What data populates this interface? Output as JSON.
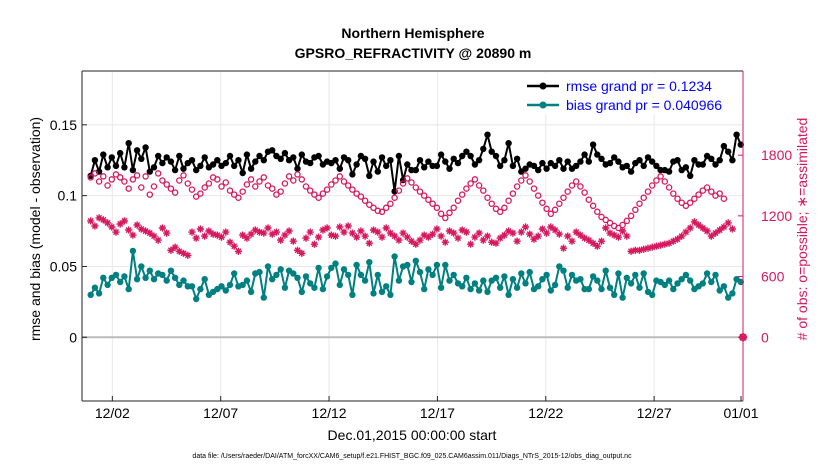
{
  "chart_data": {
    "type": "line",
    "title": "Northern Hemisphere",
    "subtitle": "GPSRO_REFRACTIVITY @ 20890 m",
    "xlabel": "Dec.01,2015 00:00:00 start",
    "ylabel": "rmse and bias (model - observation)",
    "ylabel_right": "# of obs: o=possible; ∗=assimilated",
    "footnote": "data file: /Users/raeder/DAI/ATM_forcXX/CAM6_setup/f.e21.FHIST_BGC.f09_025.CAM6assim.011/Diags_NTrS_2015-12/obs_diag_output.nc",
    "xlim": [
      0.6,
      31.1
    ],
    "ylim": [
      -0.045,
      0.188
    ],
    "ylim_right": [
      -630,
      2632
    ],
    "x_ticks": [
      2,
      7,
      12,
      17,
      22,
      27,
      32
    ],
    "x_tick_labels": [
      "12/02",
      "12/07",
      "12/12",
      "12/17",
      "12/22",
      "12/27",
      "01/01"
    ],
    "y_ticks": [
      0,
      0.05,
      0.1,
      0.15
    ],
    "y_tick_labels": [
      "0",
      "0.05",
      "0.1",
      "0.15"
    ],
    "y_right_ticks": [
      0,
      600,
      1200,
      1800
    ],
    "y_right_tick_labels": [
      "0",
      "600",
      "1200",
      "1800"
    ],
    "zero_line": 0,
    "grid": true,
    "legend_position": "top-right",
    "colors": {
      "rmse": "#000000",
      "bias": "#008080",
      "obs": "#d6185e",
      "legend_text": "#0000ff",
      "zero_line": "#bbbbbb",
      "grid": "#e8e8e8"
    },
    "series": [
      {
        "name": "rmse grand pr = 0.1234",
        "axis": "left",
        "values": [
          0.114,
          0.125,
          0.117,
          0.129,
          0.12,
          0.127,
          0.121,
          0.13,
          0.12,
          0.137,
          0.118,
          0.132,
          0.126,
          0.134,
          0.117,
          0.12,
          0.128,
          0.123,
          0.127,
          0.124,
          0.118,
          0.128,
          0.119,
          0.123,
          0.125,
          0.118,
          0.121,
          0.127,
          0.12,
          0.122,
          0.125,
          0.121,
          0.123,
          0.128,
          0.121,
          0.125,
          0.116,
          0.129,
          0.119,
          0.124,
          0.128,
          0.125,
          0.131,
          0.132,
          0.128,
          0.126,
          0.13,
          0.125,
          0.127,
          0.119,
          0.129,
          0.124,
          0.123,
          0.127,
          0.128,
          0.122,
          0.124,
          0.123,
          0.125,
          0.119,
          0.127,
          0.125,
          0.115,
          0.122,
          0.128,
          0.126,
          0.114,
          0.124,
          0.117,
          0.127,
          0.121,
          0.125,
          0.103,
          0.128,
          0.111,
          0.122,
          0.118,
          0.118,
          0.125,
          0.12,
          0.124,
          0.121,
          0.121,
          0.129,
          0.124,
          0.119,
          0.126,
          0.123,
          0.128,
          0.131,
          0.128,
          0.122,
          0.125,
          0.133,
          0.143,
          0.131,
          0.128,
          0.121,
          0.125,
          0.137,
          0.121,
          0.126,
          0.117,
          0.119,
          0.122,
          0.121,
          0.118,
          0.123,
          0.119,
          0.123,
          0.121,
          0.125,
          0.119,
          0.124,
          0.119,
          0.121,
          0.124,
          0.129,
          0.124,
          0.136,
          0.129,
          0.126,
          0.122,
          0.123,
          0.127,
          0.124,
          0.12,
          0.121,
          0.117,
          0.123,
          0.125,
          0.121,
          0.127,
          0.124,
          0.121,
          0.118,
          0.118,
          0.117,
          0.124,
          0.125,
          0.118,
          0.12,
          0.114,
          0.125,
          0.122,
          0.122,
          0.128,
          0.126,
          0.122,
          0.125,
          0.135,
          0.131,
          0.125,
          0.143,
          0.136
        ],
        "line": true,
        "marker": "filled-circle"
      },
      {
        "name": "bias grand pr = 0.040966",
        "axis": "left",
        "values": [
          0.03,
          0.035,
          0.031,
          0.042,
          0.037,
          0.042,
          0.044,
          0.039,
          0.043,
          0.034,
          0.061,
          0.041,
          0.05,
          0.042,
          0.047,
          0.041,
          0.045,
          0.044,
          0.04,
          0.047,
          0.042,
          0.037,
          0.04,
          0.036,
          0.036,
          0.027,
          0.034,
          0.041,
          0.03,
          0.032,
          0.034,
          0.036,
          0.033,
          0.037,
          0.045,
          0.036,
          0.037,
          0.04,
          0.032,
          0.045,
          0.046,
          0.028,
          0.05,
          0.041,
          0.044,
          0.048,
          0.035,
          0.047,
          0.045,
          0.042,
          0.032,
          0.043,
          0.038,
          0.035,
          0.049,
          0.034,
          0.043,
          0.049,
          0.052,
          0.037,
          0.048,
          0.044,
          0.03,
          0.051,
          0.044,
          0.04,
          0.053,
          0.031,
          0.044,
          0.032,
          0.036,
          0.03,
          0.057,
          0.04,
          0.05,
          0.051,
          0.039,
          0.054,
          0.046,
          0.034,
          0.048,
          0.044,
          0.051,
          0.035,
          0.051,
          0.04,
          0.044,
          0.038,
          0.036,
          0.042,
          0.034,
          0.038,
          0.033,
          0.04,
          0.032,
          0.04,
          0.042,
          0.035,
          0.043,
          0.03,
          0.041,
          0.035,
          0.045,
          0.038,
          0.046,
          0.034,
          0.036,
          0.041,
          0.044,
          0.033,
          0.037,
          0.05,
          0.047,
          0.035,
          0.044,
          0.04,
          0.041,
          0.034,
          0.034,
          0.043,
          0.04,
          0.034,
          0.047,
          0.035,
          0.03,
          0.045,
          0.028,
          0.042,
          0.038,
          0.044,
          0.035,
          0.045,
          0.032,
          0.03,
          0.04,
          0.039,
          0.037,
          0.04,
          0.034,
          0.038,
          0.041,
          0.044,
          0.04,
          0.034,
          0.036,
          0.038,
          0.045,
          0.039,
          0.044,
          0.033,
          0.036,
          0.028,
          0.031,
          0.041,
          0.039
        ],
        "line": true,
        "marker": "filled-circle"
      },
      {
        "name": "obs possible",
        "axis": "right",
        "values": [
          1580,
          1620,
          1540,
          1590,
          1500,
          1560,
          1610,
          1580,
          1540,
          1470,
          1560,
          1600,
          1480,
          1590,
          1410,
          1490,
          1620,
          1550,
          1510,
          1470,
          1430,
          1550,
          1600,
          1520,
          1460,
          1390,
          1420,
          1480,
          1520,
          1580,
          1560,
          1490,
          1530,
          1450,
          1410,
          1380,
          1440,
          1510,
          1560,
          1490,
          1540,
          1580,
          1500,
          1470,
          1410,
          1440,
          1520,
          1590,
          1550,
          1610,
          1560,
          1490,
          1450,
          1410,
          1380,
          1420,
          1460,
          1510,
          1550,
          1590,
          1540,
          1500,
          1460,
          1420,
          1390,
          1350,
          1310,
          1280,
          1250,
          1240,
          1280,
          1320,
          1380,
          1450,
          1520,
          1570,
          1530,
          1480,
          1440,
          1400,
          1360,
          1320,
          1280,
          1220,
          1180,
          1230,
          1280,
          1350,
          1410,
          1470,
          1520,
          1560,
          1500,
          1450,
          1380,
          1320,
          1270,
          1240,
          1280,
          1350,
          1420,
          1490,
          1550,
          1600,
          1540,
          1470,
          1400,
          1330,
          1270,
          1220,
          1260,
          1320,
          1380,
          1440,
          1500,
          1540,
          1490,
          1430,
          1360,
          1300,
          1240,
          1190,
          1160,
          1130,
          1100,
          1080,
          1110,
          1150,
          1200,
          1260,
          1320,
          1380,
          1440,
          1500,
          1550,
          1590,
          1540,
          1480,
          1420,
          1370,
          1330,
          1300,
          1330,
          1370,
          1410,
          1450,
          1480,
          1440,
          1400,
          1420,
          1370
        ],
        "line": false,
        "marker": "open-circle"
      },
      {
        "name": "obs assimilated",
        "axis": "right",
        "values": [
          1150,
          1100,
          1180,
          1160,
          1130,
          1090,
          1040,
          1120,
          1150,
          1060,
          1010,
          1110,
          1070,
          1050,
          1030,
          1000,
          960,
          1080,
          1030,
          860,
          890,
          850,
          830,
          810,
          1040,
          980,
          1070,
          1000,
          1050,
          1020,
          1010,
          990,
          1040,
          940,
          900,
          850,
          1010,
          980,
          1020,
          1060,
          1040,
          1030,
          1080,
          1020,
          1040,
          960,
          1010,
          1050,
          950,
          860,
          830,
          980,
          1040,
          920,
          990,
          1060,
          1080,
          1010,
          1000,
          1090,
          1040,
          1100,
          1030,
          990,
          1050,
          1000,
          930,
          1060,
          1040,
          990,
          1080,
          1030,
          1000,
          960,
          1030,
          990,
          950,
          920,
          960,
          1010,
          990,
          1020,
          1070,
          1000,
          940,
          1050,
          1030,
          980,
          1060,
          1040,
          920,
          990,
          1030,
          960,
          1000,
          940,
          930,
          980,
          1010,
          1050,
          1030,
          950,
          1040,
          1090,
          1020,
          970,
          1000,
          1070,
          1030,
          1090,
          1060,
          1020,
          880,
          1000,
          950,
          1040,
          1010,
          980,
          960,
          930,
          900,
          950,
          1080,
          1030,
          1010,
          990,
          1050,
          1000,
          850,
          860,
          860,
          870,
          880,
          890,
          900,
          910,
          920,
          930,
          950,
          970,
          1000,
          1040,
          1080,
          1140,
          1110,
          1080,
          1050,
          1000,
          1030,
          1060,
          1090,
          1130,
          1070
        ],
        "line": false,
        "marker": "asterisk"
      }
    ],
    "extra_points": [
      {
        "series": "obs assimilated",
        "x": 31.15,
        "y": 0
      }
    ]
  }
}
